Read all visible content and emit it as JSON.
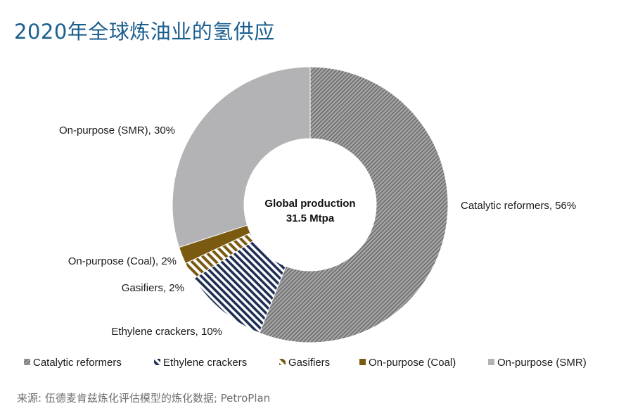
{
  "title": "2020年全球炼油业的氢供应",
  "source": "来源: 伍德麦肯兹炼化评估模型的炼化数据; PetroPlan",
  "colors": {
    "catalytic_reformers": "#8c8c8c",
    "ethylene_crackers": "#1f2f55",
    "gasifiers": "#7a5a10",
    "on_purpose_coal": "#7a5a10",
    "on_purpose_smr": "#b3b3b6"
  },
  "chart_data": {
    "type": "pie",
    "donut": true,
    "center_label": [
      "Global production",
      "31.5 Mtpa"
    ],
    "slices": [
      {
        "name": "Catalytic reformers",
        "value": 56,
        "label": "Catalytic reformers, 56%",
        "color": "#8c8c8c",
        "pattern": "diagonal-hatch"
      },
      {
        "name": "Ethylene crackers",
        "value": 10,
        "label": "Ethylene crackers, 10%",
        "color": "#1f2f55",
        "pattern": "diagonal-stripes"
      },
      {
        "name": "Gasifiers",
        "value": 2,
        "label": "Gasifiers, 2%",
        "color": "#7a5a10",
        "pattern": "wide-stripes"
      },
      {
        "name": "On-purpose (Coal)",
        "value": 2,
        "label": "On-purpose (Coal), 2%",
        "color": "#7a5a10",
        "pattern": "solid"
      },
      {
        "name": "On-purpose (SMR)",
        "value": 30,
        "label": "On-purpose (SMR), 30%",
        "color": "#b3b3b6",
        "pattern": "solid"
      }
    ],
    "legend": [
      "Catalytic reformers",
      "Ethylene crackers",
      "Gasifiers",
      "On-purpose (Coal)",
      "On-purpose (SMR)"
    ],
    "legend_position": "bottom"
  }
}
